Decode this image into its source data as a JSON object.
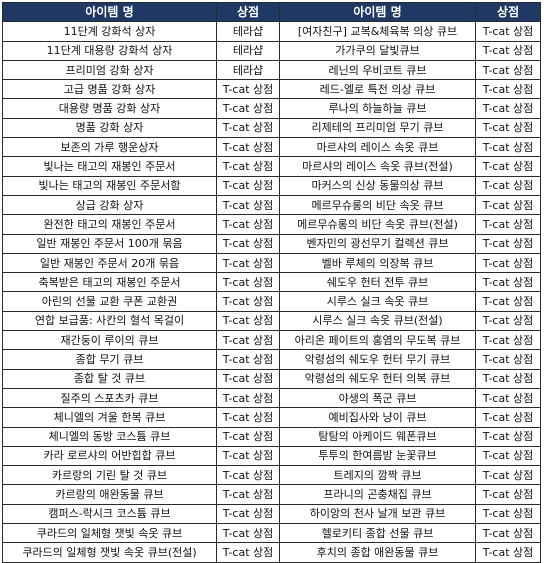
{
  "table": {
    "headers": [
      "아이템 명",
      "상점",
      "아이템 명",
      "상점"
    ],
    "rows": [
      [
        "11단계 강화석 상자",
        "테라샵",
        "[여자친구] 교복&체육복 의상 큐브",
        "T-cat 상점"
      ],
      [
        "11단계 대용량 강화석 상자",
        "테라샵",
        "가가쿠의 달빛큐브",
        "T-cat 상점"
      ],
      [
        "프리미엄 강화 상자",
        "테라샵",
        "레닌의 우비코트 큐브",
        "T-cat 상점"
      ],
      [
        "고급 명품 강화 상자",
        "T-cat 상점",
        "레드-엘로 특전 의상 큐브",
        "T-cat 상점"
      ],
      [
        "대용량 명품 강화 상자",
        "T-cat 상점",
        "루나의 하늘하늘 큐브",
        "T-cat 상점"
      ],
      [
        "명품 강화 상자",
        "T-cat 상점",
        "리제테의 프리미엄 무기 큐브",
        "T-cat 상점"
      ],
      [
        "보존의 가루 행운상자",
        "T-cat 상점",
        "마르샤의 레이스 속옷 큐브",
        "T-cat 상점"
      ],
      [
        "빛나는 태고의 재봉인 주문서",
        "T-cat 상점",
        "마르샤의 레이스 속옷 큐브(전설)",
        "T-cat 상점"
      ],
      [
        "빛나는 태고의 재봉인 주문서함",
        "T-cat 상점",
        "마커스의 신상 동물의상 큐브",
        "T-cat 상점"
      ],
      [
        "상급 강화 상자",
        "T-cat 상점",
        "메르무슈롱의 비단 속옷 큐브",
        "T-cat 상점"
      ],
      [
        "완전한 태고의 재봉인 주문서",
        "T-cat 상점",
        "메르무슈롱의 비단 속옷 큐브(전설)",
        "T-cat 상점"
      ],
      [
        "일반 재봉인 주문서 100개 묶음",
        "T-cat 상점",
        "벤자민의 광선무기 컬렉션 큐브",
        "T-cat 상점"
      ],
      [
        "일반 재봉인 주문서 20개 묶음",
        "T-cat 상점",
        "벨바 루체의 의장복 큐브",
        "T-cat 상점"
      ],
      [
        "축복받은 태고의 재봉인 주문서",
        "T-cat 상점",
        "쉐도우 헌터 전투 큐브",
        "T-cat 상점"
      ],
      [
        "아린의 선물 교환 쿠폰 교환권",
        "T-cat 상점",
        "시루스 실크 속옷 큐브",
        "T-cat 상점"
      ],
      [
        "연합 보급품: 사칸의 혈석 목걸이",
        "T-cat 상점",
        "시루스 실크 속옷 큐브(전설)",
        "T-cat 상점"
      ],
      [
        "재간둥이 루이의 큐브",
        "T-cat 상점",
        "아리온 페이트의 홍염의 무도복 큐브",
        "T-cat 상점"
      ],
      [
        "종합 무기 큐브",
        "T-cat 상점",
        "악령섬의 쉐도우 헌터 무기 큐브",
        "T-cat 상점"
      ],
      [
        "종합 탈 것 큐브",
        "T-cat 상점",
        "악령섬의 쉐도우 헌터 의복 큐브",
        "T-cat 상점"
      ],
      [
        "질주의 스포츠카 큐브",
        "T-cat 상점",
        "야생의 폭군 큐브",
        "T-cat 상점"
      ],
      [
        "체니엘의 겨울 한복 큐브",
        "T-cat 상점",
        "예비집사와 냥이 큐브",
        "T-cat 상점"
      ],
      [
        "체니엘의 동방 코스튬 큐브",
        "T-cat 상점",
        "탐탐의 아케이드 웨폰큐브",
        "T-cat 상점"
      ],
      [
        "카라 로르샤의 어반힙합 큐브",
        "T-cat 상점",
        "투투의 한여름밤 눈꽃큐브",
        "T-cat 상점"
      ],
      [
        "카르랑의 기린 탈 것 큐브",
        "T-cat 상점",
        "트레지의 깜짝 큐브",
        "T-cat 상점"
      ],
      [
        "카르랑의 애완동물 큐브",
        "T-cat 상점",
        "프라니의 곤충채집 큐브",
        "T-cat 상점"
      ],
      [
        "캠퍼스-락시크 코스튬 큐브",
        "T-cat 상점",
        "하이앙의 천사 날개 보관 큐브",
        "T-cat 상점"
      ],
      [
        "쿠라드의 일체형 잿빛 속옷 큐브",
        "T-cat 상점",
        "헬로키티 종합 선물 큐브",
        "T-cat 상점"
      ],
      [
        "쿠라드의 일체형 잿빛 속옷 큐브(전설)",
        "T-cat 상점",
        "후치의 종합 애완동물 큐브",
        "T-cat 상점"
      ]
    ]
  }
}
